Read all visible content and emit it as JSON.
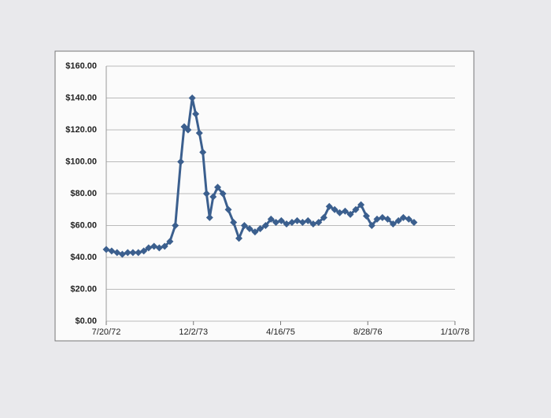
{
  "chart_data": {
    "type": "line",
    "x": [
      "7/20/72",
      "8/20/72",
      "9/20/72",
      "10/20/72",
      "11/20/72",
      "12/20/72",
      "1/20/73",
      "2/20/73",
      "3/20/73",
      "4/20/73",
      "5/20/73",
      "6/20/73",
      "7/20/73",
      "8/20/73",
      "9/20/73",
      "10/10/73",
      "11/1/73",
      "11/25/73",
      "12/15/73",
      "1/5/74",
      "1/25/74",
      "2/15/74",
      "3/5/74",
      "3/25/74",
      "4/20/74",
      "5/20/74",
      "6/20/74",
      "7/20/74",
      "8/20/74",
      "9/20/74",
      "10/20/74",
      "11/20/74",
      "12/20/74",
      "1/20/75",
      "2/20/75",
      "3/20/75",
      "4/20/75",
      "5/20/75",
      "6/20/75",
      "7/20/75",
      "8/20/75",
      "9/20/75",
      "10/20/75",
      "11/20/75",
      "12/20/75",
      "1/20/76",
      "2/20/76",
      "3/20/76",
      "4/20/76",
      "5/20/76",
      "6/20/76",
      "7/20/76",
      "8/20/76",
      "9/20/76",
      "10/20/76",
      "11/20/76",
      "12/20/76",
      "1/20/77",
      "2/20/77",
      "3/20/77",
      "4/20/77",
      "5/20/77"
    ],
    "series": [
      {
        "color": "#3b5f8e",
        "values": [
          45,
          44,
          43,
          42,
          43,
          43,
          43,
          44,
          46,
          47,
          46,
          47,
          50,
          60,
          100,
          122,
          120,
          140,
          130,
          118,
          106,
          80,
          65,
          78,
          84,
          80,
          70,
          62,
          52,
          60,
          58,
          56,
          58,
          60,
          64,
          62,
          63,
          61,
          62,
          63,
          62,
          63,
          61,
          62,
          65,
          72,
          70,
          68,
          69,
          67,
          70,
          73,
          66,
          60,
          64,
          65,
          64,
          61,
          63,
          65,
          64,
          62
        ]
      }
    ],
    "xlim": [
      "7/20/72",
      "1/10/78"
    ],
    "xticks": [
      "7/20/72",
      "12/2/73",
      "4/16/75",
      "8/28/76",
      "1/10/78"
    ],
    "ylim": [
      0,
      160
    ],
    "yticks": [
      {
        "value": 0,
        "label": "$0.00"
      },
      {
        "value": 20,
        "label": "$20.00"
      },
      {
        "value": 40,
        "label": "$40.00"
      },
      {
        "value": 60,
        "label": "$60.00"
      },
      {
        "value": 80,
        "label": "$80.00"
      },
      {
        "value": 100,
        "label": "$100.00"
      },
      {
        "value": 120,
        "label": "$120.00"
      },
      {
        "value": 140,
        "label": "$140.00"
      },
      {
        "value": 160,
        "label": "$160.00"
      }
    ],
    "grid": true
  }
}
